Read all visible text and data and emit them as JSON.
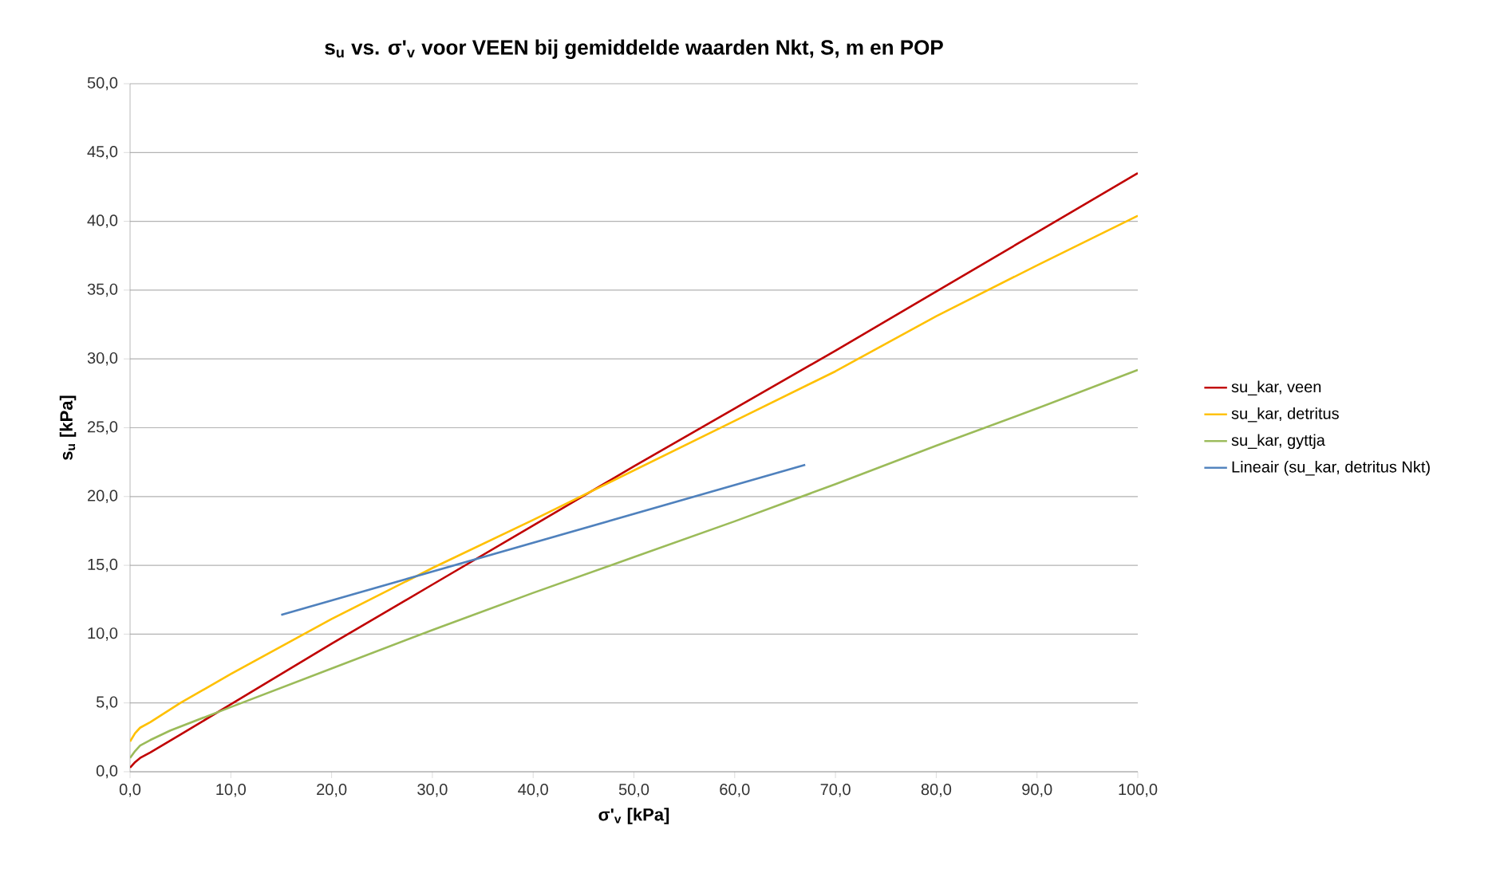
{
  "chart_data": {
    "type": "line",
    "title": "s$_{u}$ vs. σ'$_{v}$ voor VEEN bij gemiddelde waarden Nkt, S, m en POP",
    "xlabel": "σ'$_{v}$ [kPa]",
    "ylabel": "s$_{u}$ [kPa]",
    "xlim": [
      0,
      100
    ],
    "ylim": [
      0,
      50
    ],
    "xticks": [
      {
        "value": 0,
        "label": "0,0"
      },
      {
        "value": 10,
        "label": "10,0"
      },
      {
        "value": 20,
        "label": "20,0"
      },
      {
        "value": 30,
        "label": "30,0"
      },
      {
        "value": 40,
        "label": "40,0"
      },
      {
        "value": 50,
        "label": "50,0"
      },
      {
        "value": 60,
        "label": "60,0"
      },
      {
        "value": 70,
        "label": "70,0"
      },
      {
        "value": 80,
        "label": "80,0"
      },
      {
        "value": 90,
        "label": "90,0"
      },
      {
        "value": 100,
        "label": "100,0"
      }
    ],
    "yticks": [
      {
        "value": 0,
        "label": "0,0"
      },
      {
        "value": 5,
        "label": "5,0"
      },
      {
        "value": 10,
        "label": "10,0"
      },
      {
        "value": 15,
        "label": "15,0"
      },
      {
        "value": 20,
        "label": "20,0"
      },
      {
        "value": 25,
        "label": "25,0"
      },
      {
        "value": 30,
        "label": "30,0"
      },
      {
        "value": 35,
        "label": "35,0"
      },
      {
        "value": 40,
        "label": "40,0"
      },
      {
        "value": 45,
        "label": "45,0"
      },
      {
        "value": 50,
        "label": "50,0"
      }
    ],
    "grid": "y",
    "legend": "right",
    "marker": "none",
    "line_style": "solid",
    "series": [
      {
        "name": "su_kar, veen",
        "color": "#c00000",
        "x": [
          0,
          0.5,
          1,
          2,
          5,
          10,
          20,
          30,
          40,
          50,
          60,
          70,
          80,
          90,
          100
        ],
        "values": [
          0.3,
          0.7,
          1.0,
          1.4,
          2.7,
          4.9,
          9.3,
          13.6,
          17.9,
          22.2,
          26.4,
          30.6,
          34.9,
          39.2,
          43.5
        ]
      },
      {
        "name": "su_kar, detritus",
        "color": "#ffc000",
        "x": [
          0,
          0.5,
          1,
          2,
          5,
          10,
          20,
          30,
          40,
          50,
          60,
          70,
          80,
          90,
          100
        ],
        "values": [
          2.2,
          2.8,
          3.2,
          3.6,
          5.0,
          7.1,
          11.1,
          14.8,
          18.3,
          21.9,
          25.5,
          29.1,
          33.1,
          36.8,
          40.4
        ]
      },
      {
        "name": "su_kar, gyttja",
        "color": "#9bbb59",
        "x": [
          0,
          0.5,
          1,
          2,
          4,
          10,
          20,
          30,
          40,
          50,
          60,
          70,
          80,
          90,
          100
        ],
        "values": [
          1.0,
          1.5,
          1.9,
          2.3,
          3.0,
          4.7,
          7.5,
          10.3,
          13.0,
          15.6,
          18.2,
          20.9,
          23.7,
          26.4,
          29.2
        ]
      },
      {
        "name": "Lineair (su_kar, detritus Nkt)",
        "color": "#4f81bd",
        "x": [
          15,
          67
        ],
        "values": [
          11.4,
          22.3
        ]
      }
    ]
  }
}
